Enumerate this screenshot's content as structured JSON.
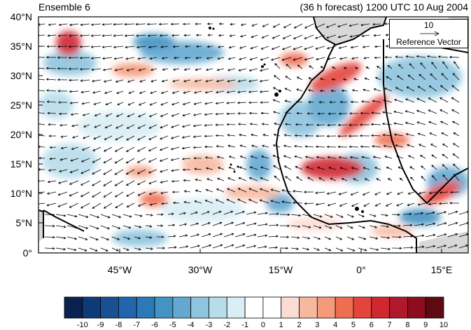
{
  "header": {
    "left_title": "Ensemble 6",
    "right_title": "(36 h forecast) 1200 UTC 10 Aug 2004"
  },
  "map": {
    "lon_range": [
      -60,
      20
    ],
    "lat_range": [
      0,
      40
    ],
    "y_ticks": [
      "40°N",
      "35°N",
      "30°N",
      "25°N",
      "20°N",
      "15°N",
      "10°N",
      "5°N",
      "0°"
    ],
    "x_ticks": [
      "45°W",
      "30°W",
      "15°W",
      "0°",
      "15°E"
    ],
    "land_fill": "#d8d8d8",
    "coast_color": "#000000"
  },
  "reference_vector": {
    "magnitude": "10",
    "label": "Reference Vector"
  },
  "colorbar": {
    "labels": [
      "-10",
      "-9",
      "-8",
      "-7",
      "-6",
      "-5",
      "-4",
      "-3",
      "-2",
      "-1",
      "0",
      "1",
      "2",
      "3",
      "4",
      "5",
      "6",
      "7",
      "8",
      "9",
      "10"
    ],
    "colors": [
      "#0b2250",
      "#0d3b7a",
      "#1a4f92",
      "#2166ac",
      "#2b79b9",
      "#4393c3",
      "#63a8d0",
      "#8ec4de",
      "#b7ddeb",
      "#d9eef5",
      "#ffffff",
      "#ffffff",
      "#fbdcd2",
      "#f7b8a0",
      "#f4997a",
      "#ef6e52",
      "#e3443c",
      "#cf2830",
      "#b2182b",
      "#8c0d1f",
      "#5e0a13"
    ]
  },
  "colors": {
    "positive_anomaly": "#e3443c",
    "negative_anomaly": "#4393c3"
  }
}
